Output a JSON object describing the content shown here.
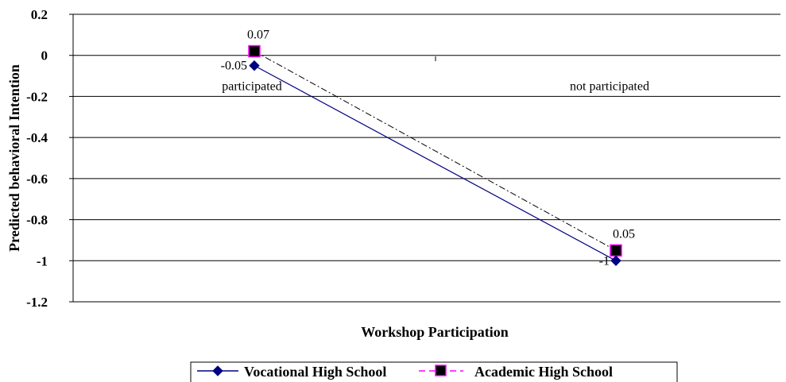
{
  "chart_data": {
    "type": "line",
    "categories": [
      "participated",
      "not participated"
    ],
    "series": [
      {
        "name": "Vocational High School",
        "values": [
          -0.05,
          -1
        ],
        "data_labels": [
          "-0.05",
          "-1"
        ],
        "color": "#000080",
        "marker": "diamond",
        "line_style": "solid"
      },
      {
        "name": "Academic High School",
        "values": [
          0.02,
          -0.95
        ],
        "data_labels": [
          "0.07",
          "0.05"
        ],
        "color": "#000000",
        "marker_fill": "#000000",
        "marker_edge": "#ff00ff",
        "legend_line_color": "#ff00ff",
        "marker": "square",
        "line_style": "dash-dot"
      }
    ],
    "xlabel": "Workshop Participation",
    "ylabel": "Predicted behavioral Intention",
    "ylim": [
      -1.2,
      0.2
    ],
    "yticks": [
      0.2,
      0,
      -0.2,
      -0.4,
      -0.6,
      -0.8,
      -1,
      -1.2
    ],
    "ytick_labels": [
      "0.2",
      "0",
      "-0.2",
      "-0.4",
      "-0.6",
      "-0.8",
      "-1",
      "-1.2"
    ],
    "grid": true,
    "legend_position": "bottom"
  }
}
